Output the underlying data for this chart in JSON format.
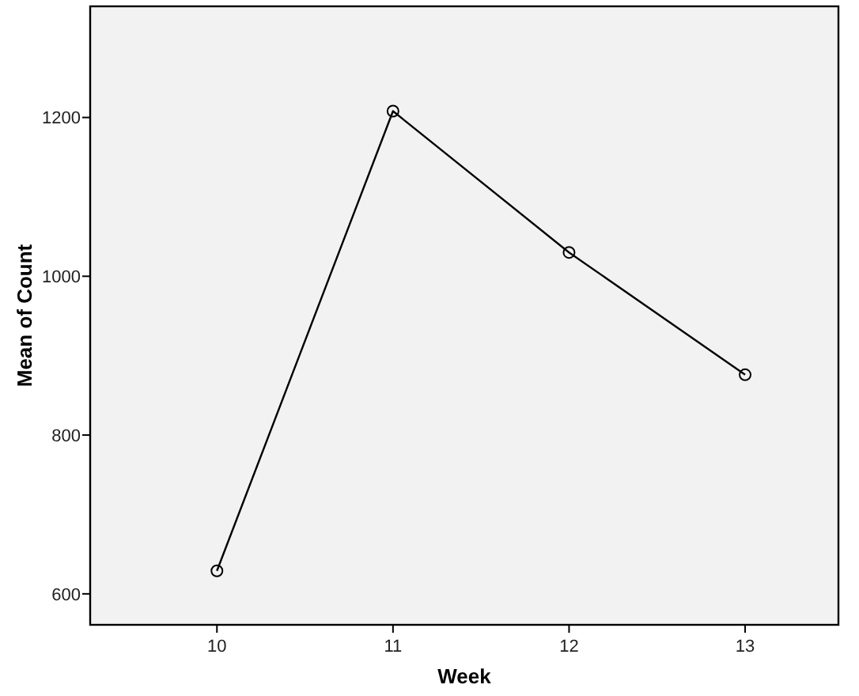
{
  "chart_data": {
    "type": "line",
    "xlabel": "Week",
    "ylabel": "Mean of Count",
    "x": [
      10,
      11,
      12,
      13
    ],
    "series": [
      {
        "color": "#000000",
        "values": [
          629,
          1208,
          1030,
          876
        ]
      }
    ],
    "xlim": [
      9.28,
      13.53
    ],
    "xticks": [
      10,
      11,
      12,
      13
    ],
    "ylim": [
      561,
      1340
    ],
    "yticks": [
      600,
      800,
      1000,
      1200
    ],
    "marker": "circle",
    "grid": false
  }
}
